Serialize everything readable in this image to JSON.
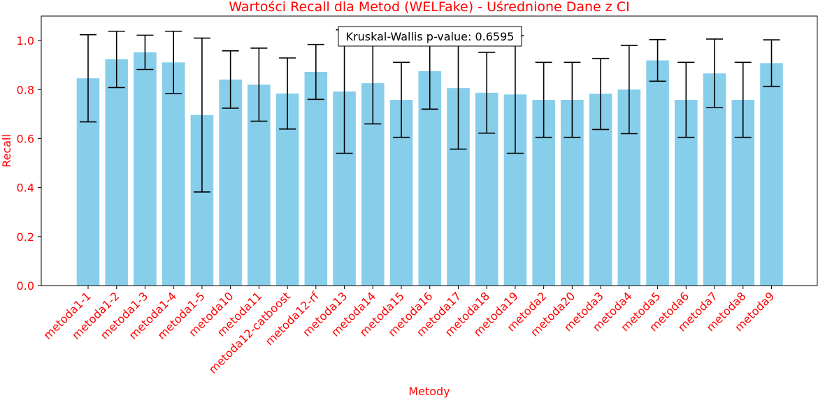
{
  "chart_data": {
    "type": "bar",
    "title": "Wartości Recall dla Metod (WELFake) - Uśrednione Dane z CI",
    "xlabel": "Metody",
    "ylabel": "Recall",
    "ylim": [
      0,
      1.1
    ],
    "yticks": [
      "0.0",
      "0.2",
      "0.4",
      "0.6",
      "0.8",
      "1.0"
    ],
    "grid": false,
    "annotation": "Kruskal-Wallis p-value: 0.6595",
    "colors": {
      "bar": "#87ceeb",
      "text": "#ff0000",
      "error": "#000000"
    },
    "categories": [
      "metoda1-1",
      "metoda1-2",
      "metoda1-3",
      "metoda1-4",
      "metoda1-5",
      "metoda10",
      "metoda11",
      "metoda12-catboost",
      "metoda12-rf",
      "metoda13",
      "metoda14",
      "metoda15",
      "metoda16",
      "metoda17",
      "metoda18",
      "metoda19",
      "metoda2",
      "metoda20",
      "metoda3",
      "metoda4",
      "metoda5",
      "metoda6",
      "metoda7",
      "metoda8",
      "metoda9"
    ],
    "values": [
      0.846,
      0.924,
      0.952,
      0.911,
      0.696,
      0.841,
      0.82,
      0.784,
      0.872,
      0.792,
      0.826,
      0.758,
      0.875,
      0.806,
      0.787,
      0.78,
      0.758,
      0.758,
      0.783,
      0.8,
      0.919,
      0.758,
      0.866,
      0.758,
      0.908
    ],
    "ci_lower": [
      0.668,
      0.808,
      0.882,
      0.784,
      0.382,
      0.724,
      0.671,
      0.639,
      0.76,
      0.54,
      0.66,
      0.605,
      0.72,
      0.557,
      0.622,
      0.54,
      0.605,
      0.605,
      0.637,
      0.62,
      0.834,
      0.605,
      0.726,
      0.605,
      0.813
    ],
    "ci_upper": [
      1.024,
      1.038,
      1.022,
      1.038,
      1.01,
      0.958,
      0.969,
      0.929,
      0.984,
      1.044,
      0.992,
      0.911,
      1.03,
      1.055,
      0.952,
      1.02,
      0.911,
      0.911,
      0.927,
      0.98,
      1.004,
      0.911,
      1.006,
      0.911,
      1.003
    ]
  }
}
